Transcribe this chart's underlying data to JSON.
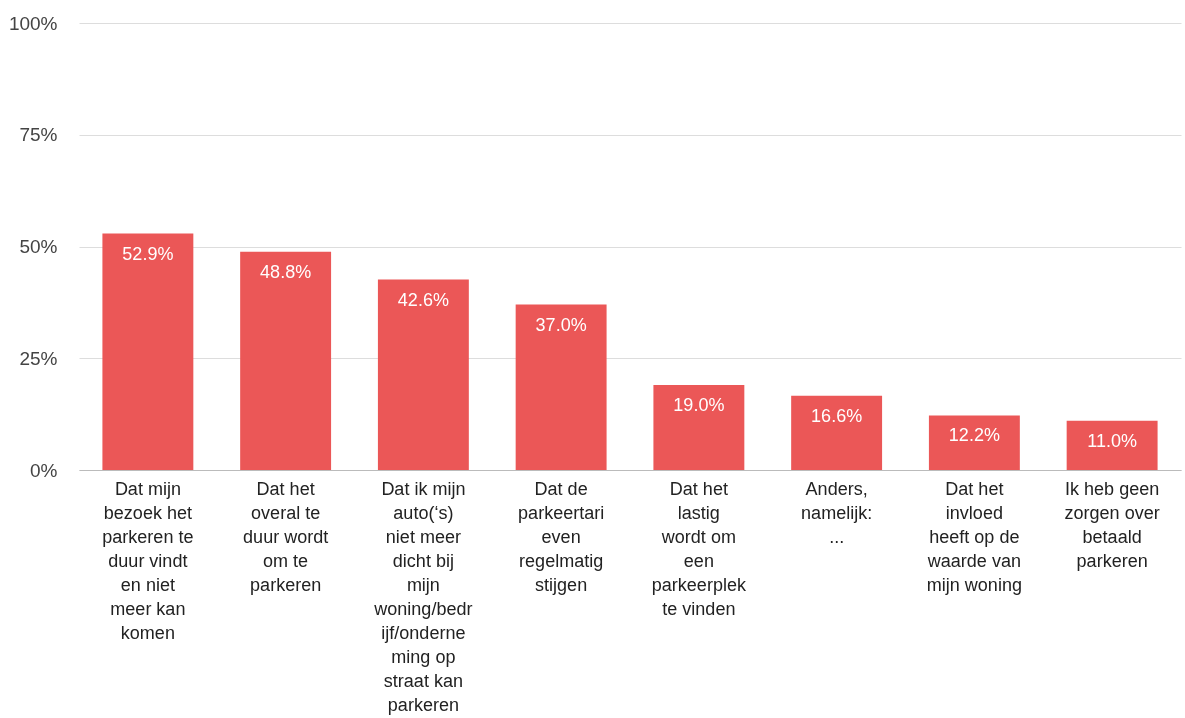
{
  "chart_data": {
    "type": "bar",
    "categories": [
      "Dat mijn bezoek het parkeren te duur vindt en niet meer kan komen",
      "Dat het overal te duur wordt om te parkeren",
      "Dat ik mijn auto(‘s) niet meer dicht bij mijn woning/bedrijf/onderneming op straat kan parkeren",
      "Dat de parkeertarieven regelmatig stijgen",
      "Dat het lastig wordt om een parkeerplek te vinden",
      "Anders, namelijk: ...",
      "Dat het invloed heeft op de waarde van mijn woning",
      "Ik heb geen zorgen over betaald parkeren"
    ],
    "values": [
      52.9,
      48.8,
      42.6,
      37.0,
      19.0,
      16.6,
      12.2,
      11.0
    ],
    "value_labels": [
      "52.9%",
      "48.8%",
      "42.6%",
      "37.0%",
      "19.0%",
      "16.6%",
      "12.2%",
      "11.0%"
    ],
    "color": "#eb5757",
    "ylim": [
      0,
      100
    ],
    "yticks": [
      {
        "value": 0,
        "label": "0%"
      },
      {
        "value": 25,
        "label": "25%"
      },
      {
        "value": 50,
        "label": "50%"
      },
      {
        "value": 75,
        "label": "75%"
      },
      {
        "value": 100,
        "label": "100%"
      }
    ],
    "grid": "y"
  }
}
